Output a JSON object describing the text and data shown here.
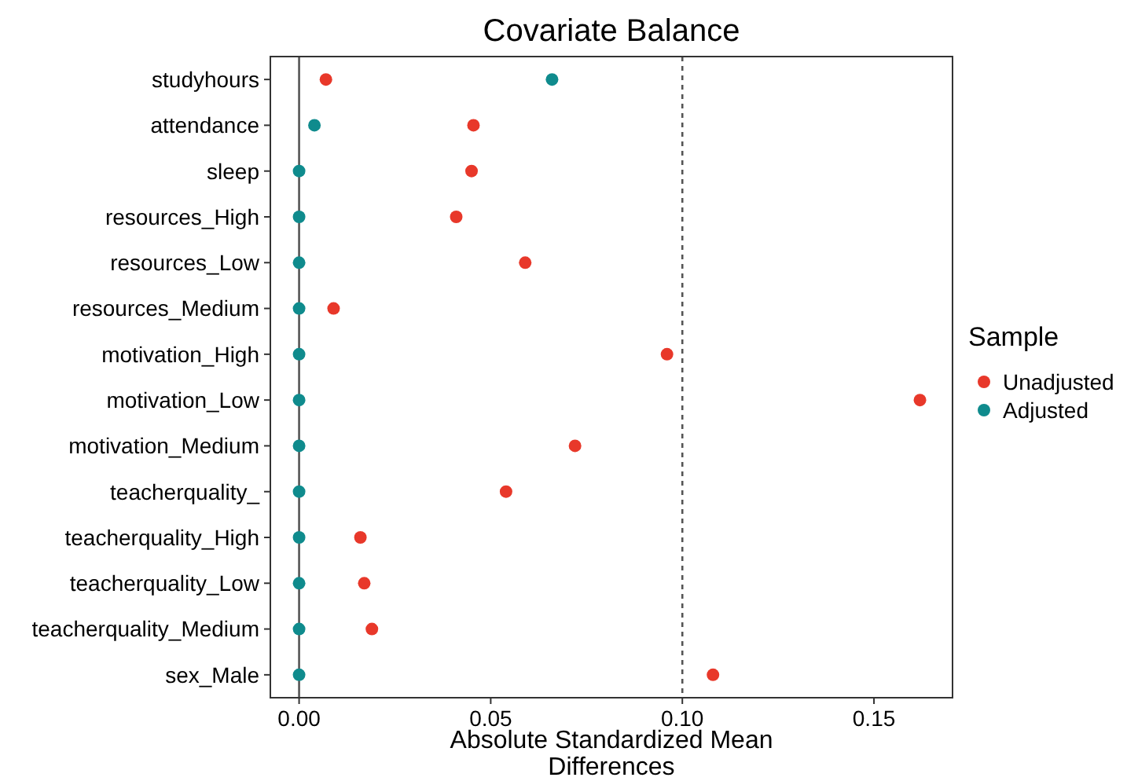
{
  "chart_data": {
    "type": "scatter",
    "orientation": "horizontal",
    "title": "Covariate Balance",
    "xlabel": "Absolute Standardized Mean Differences",
    "legend_title": "Sample",
    "categories": [
      "studyhours",
      "attendance",
      "sleep",
      "resources_High",
      "resources_Low",
      "resources_Medium",
      "motivation_High",
      "motivation_Low",
      "motivation_Medium",
      "teacherquality_",
      "teacherquality_High",
      "teacherquality_Low",
      "teacherquality_Medium",
      "sex_Male"
    ],
    "series": [
      {
        "name": "Unadjusted",
        "color": "#e8382a",
        "values": [
          0.007,
          0.0455,
          0.045,
          0.041,
          0.059,
          0.009,
          0.096,
          0.162,
          0.072,
          0.054,
          0.016,
          0.017,
          0.019,
          0.108
        ]
      },
      {
        "name": "Adjusted",
        "color": "#0f8b8d",
        "values": [
          0.066,
          0.004,
          0,
          0,
          0,
          0,
          0,
          0,
          0,
          0,
          0,
          0,
          0,
          0
        ]
      }
    ],
    "xlim": [
      -0.0075,
      0.1705
    ],
    "xticks": [
      {
        "value": 0,
        "label": "0.00"
      },
      {
        "value": 0.05,
        "label": "0.05"
      },
      {
        "value": 0.1,
        "label": "0.10"
      },
      {
        "value": 0.15,
        "label": "0.15"
      }
    ],
    "ref_lines": [
      {
        "axis": "x",
        "value": 0,
        "color": "#555555",
        "line_style": "solid"
      },
      {
        "axis": "x",
        "value": 0.1,
        "color": "#555555",
        "line_style": "dotted"
      }
    ],
    "grid": false,
    "legend": "right",
    "marker": "circle"
  }
}
